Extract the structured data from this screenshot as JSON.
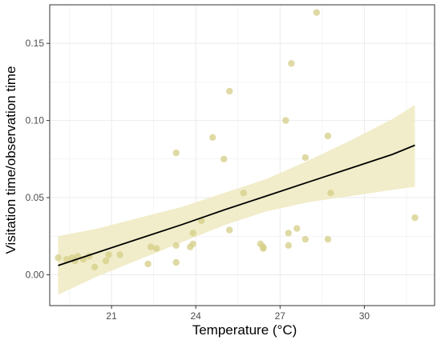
{
  "chart_data": {
    "type": "scatter",
    "xlabel": "Temperature (°C)",
    "ylabel": "Visitation time/observation time",
    "xlim": [
      18.8,
      32.5
    ],
    "ylim": [
      -0.02,
      0.175
    ],
    "x_ticks": [
      21,
      24,
      27,
      30
    ],
    "y_ticks": [
      0.0,
      0.05,
      0.1,
      0.15
    ],
    "x_tick_labels": [
      "21",
      "24",
      "27",
      "30"
    ],
    "y_tick_labels": [
      "0.00",
      "0.05",
      "0.10",
      "0.15"
    ],
    "grid": true,
    "legend": "none",
    "colors": {
      "points": "#d4ce85",
      "band": "#efebc4",
      "line": "#000000",
      "grid": "#ebebeb",
      "frame": "#333333"
    },
    "points": [
      {
        "x": 19.1,
        "y": 0.011
      },
      {
        "x": 19.4,
        "y": 0.01
      },
      {
        "x": 19.6,
        "y": 0.011
      },
      {
        "x": 19.7,
        "y": 0.009
      },
      {
        "x": 19.8,
        "y": 0.012
      },
      {
        "x": 20.0,
        "y": 0.01
      },
      {
        "x": 20.2,
        "y": 0.012
      },
      {
        "x": 20.4,
        "y": 0.005
      },
      {
        "x": 20.8,
        "y": 0.009
      },
      {
        "x": 20.9,
        "y": 0.013
      },
      {
        "x": 21.3,
        "y": 0.013
      },
      {
        "x": 22.3,
        "y": 0.007
      },
      {
        "x": 22.4,
        "y": 0.018
      },
      {
        "x": 22.6,
        "y": 0.017
      },
      {
        "x": 23.3,
        "y": 0.079
      },
      {
        "x": 23.3,
        "y": 0.008
      },
      {
        "x": 23.3,
        "y": 0.019
      },
      {
        "x": 23.8,
        "y": 0.018
      },
      {
        "x": 23.9,
        "y": 0.027
      },
      {
        "x": 23.9,
        "y": 0.02
      },
      {
        "x": 24.2,
        "y": 0.035
      },
      {
        "x": 24.6,
        "y": 0.089
      },
      {
        "x": 25.0,
        "y": 0.075
      },
      {
        "x": 25.2,
        "y": 0.119
      },
      {
        "x": 25.2,
        "y": 0.029
      },
      {
        "x": 25.7,
        "y": 0.053
      },
      {
        "x": 26.3,
        "y": 0.02
      },
      {
        "x": 26.4,
        "y": 0.017
      },
      {
        "x": 26.4,
        "y": 0.018
      },
      {
        "x": 27.2,
        "y": 0.1
      },
      {
        "x": 27.3,
        "y": 0.027
      },
      {
        "x": 27.3,
        "y": 0.019
      },
      {
        "x": 27.4,
        "y": 0.137
      },
      {
        "x": 27.6,
        "y": 0.03
      },
      {
        "x": 27.9,
        "y": 0.076
      },
      {
        "x": 27.9,
        "y": 0.023
      },
      {
        "x": 28.3,
        "y": 0.17
      },
      {
        "x": 28.7,
        "y": 0.09
      },
      {
        "x": 28.7,
        "y": 0.023
      },
      {
        "x": 28.8,
        "y": 0.053
      },
      {
        "x": 31.8,
        "y": 0.037
      }
    ],
    "fit": {
      "x": [
        19.1,
        20.5,
        22.0,
        23.5,
        25.0,
        26.5,
        28.0,
        29.5,
        31.0,
        31.8
      ],
      "y": [
        0.006,
        0.0145,
        0.0235,
        0.0325,
        0.042,
        0.051,
        0.06,
        0.069,
        0.078,
        0.084
      ],
      "lower": [
        -0.013,
        -0.001,
        0.01,
        0.021,
        0.032,
        0.041,
        0.047,
        0.051,
        0.055,
        0.057
      ],
      "upper": [
        0.025,
        0.03,
        0.037,
        0.044,
        0.053,
        0.062,
        0.074,
        0.087,
        0.101,
        0.11
      ]
    }
  }
}
